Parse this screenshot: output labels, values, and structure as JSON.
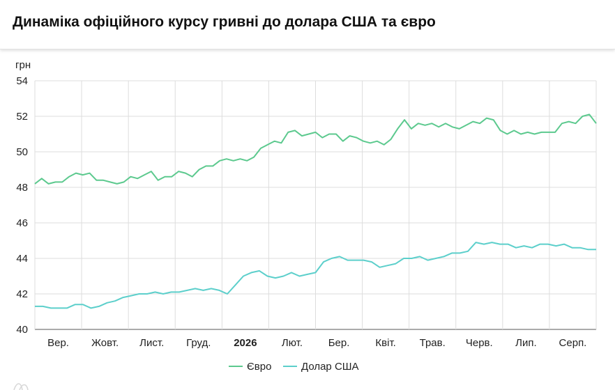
{
  "title": "Динаміка офіційного курсу гривні до долара США та євро",
  "chart_data": {
    "type": "line",
    "ylabel": "грн",
    "ylim": [
      40,
      54
    ],
    "yticks": [
      40,
      42,
      44,
      46,
      48,
      50,
      52,
      54
    ],
    "grid": true,
    "legend_position": "bottom-center",
    "x_ticks": [
      {
        "label": "Вер.",
        "bold": false
      },
      {
        "label": "Жовт.",
        "bold": false
      },
      {
        "label": "Лист.",
        "bold": false
      },
      {
        "label": "Груд.",
        "bold": false
      },
      {
        "label": "2026",
        "bold": true
      },
      {
        "label": "Лют.",
        "bold": false
      },
      {
        "label": "Бер.",
        "bold": false
      },
      {
        "label": "Квіт.",
        "bold": false
      },
      {
        "label": "Трав.",
        "bold": false
      },
      {
        "label": "Черв.",
        "bold": false
      },
      {
        "label": "Лип.",
        "bold": false
      },
      {
        "label": "Серп.",
        "bold": false
      }
    ],
    "series": [
      {
        "name": "Євро",
        "color": "#5cc98e",
        "values": [
          48.2,
          48.5,
          48.2,
          48.3,
          48.3,
          48.6,
          48.8,
          48.7,
          48.8,
          48.4,
          48.4,
          48.3,
          48.2,
          48.3,
          48.6,
          48.5,
          48.7,
          48.9,
          48.4,
          48.6,
          48.6,
          48.9,
          48.8,
          48.6,
          49.0,
          49.2,
          49.2,
          49.5,
          49.6,
          49.5,
          49.6,
          49.5,
          49.7,
          50.2,
          50.4,
          50.6,
          50.5,
          51.1,
          51.2,
          50.9,
          51.0,
          51.1,
          50.8,
          51.0,
          51.0,
          50.6,
          50.9,
          50.8,
          50.6,
          50.5,
          50.6,
          50.4,
          50.7,
          51.3,
          51.8,
          51.3,
          51.6,
          51.5,
          51.6,
          51.4,
          51.6,
          51.4,
          51.3,
          51.5,
          51.7,
          51.6,
          51.9,
          51.8,
          51.2,
          51.0,
          51.2,
          51.0,
          51.1,
          51.0,
          51.1,
          51.1,
          51.1,
          51.6,
          51.7,
          51.6,
          52.0,
          52.1,
          51.6
        ]
      },
      {
        "name": "Долар США",
        "color": "#5ccfcb",
        "values": [
          41.3,
          41.3,
          41.2,
          41.2,
          41.2,
          41.4,
          41.4,
          41.2,
          41.3,
          41.5,
          41.6,
          41.8,
          41.9,
          42.0,
          42.0,
          42.1,
          42.0,
          42.1,
          42.1,
          42.2,
          42.3,
          42.2,
          42.3,
          42.2,
          42.0,
          42.5,
          43.0,
          43.2,
          43.3,
          43.0,
          42.9,
          43.0,
          43.2,
          43.0,
          43.1,
          43.2,
          43.8,
          44.0,
          44.1,
          43.9,
          43.9,
          43.9,
          43.8,
          43.5,
          43.6,
          43.7,
          44.0,
          44.0,
          44.1,
          43.9,
          44.0,
          44.1,
          44.3,
          44.3,
          44.4,
          44.9,
          44.8,
          44.9,
          44.8,
          44.8,
          44.6,
          44.7,
          44.6,
          44.8,
          44.8,
          44.7,
          44.8,
          44.6,
          44.6,
          44.5,
          44.5
        ]
      }
    ]
  }
}
